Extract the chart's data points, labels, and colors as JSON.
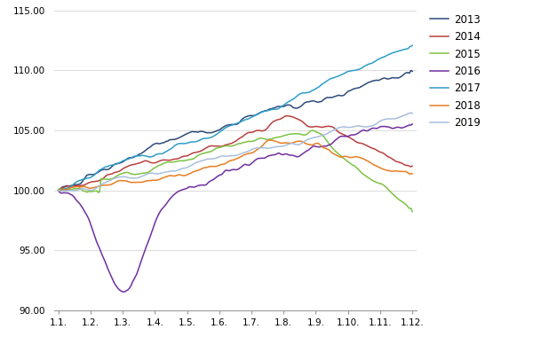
{
  "title": "",
  "xlabel": "",
  "ylabel": "",
  "ylim": [
    90.0,
    115.0
  ],
  "yticks": [
    90.0,
    95.0,
    100.0,
    105.0,
    110.0,
    115.0
  ],
  "xtick_labels": [
    "1.1.",
    "1.2.",
    "1.3.",
    "1.4.",
    "1.5.",
    "1.6.",
    "1.7.",
    "1.8.",
    "1.9.",
    "1.10.",
    "1.11.",
    "1.12."
  ],
  "colors": {
    "2013": "#2E4B7A",
    "2014": "#B94040",
    "2015": "#7DC243",
    "2016": "#7030A0",
    "2017": "#2E9DC8",
    "2018": "#E67E22",
    "2019": "#A8BFDC"
  },
  "legend_order": [
    "2013",
    "2014",
    "2015",
    "2016",
    "2017",
    "2018",
    "2019"
  ],
  "n_points": 250
}
